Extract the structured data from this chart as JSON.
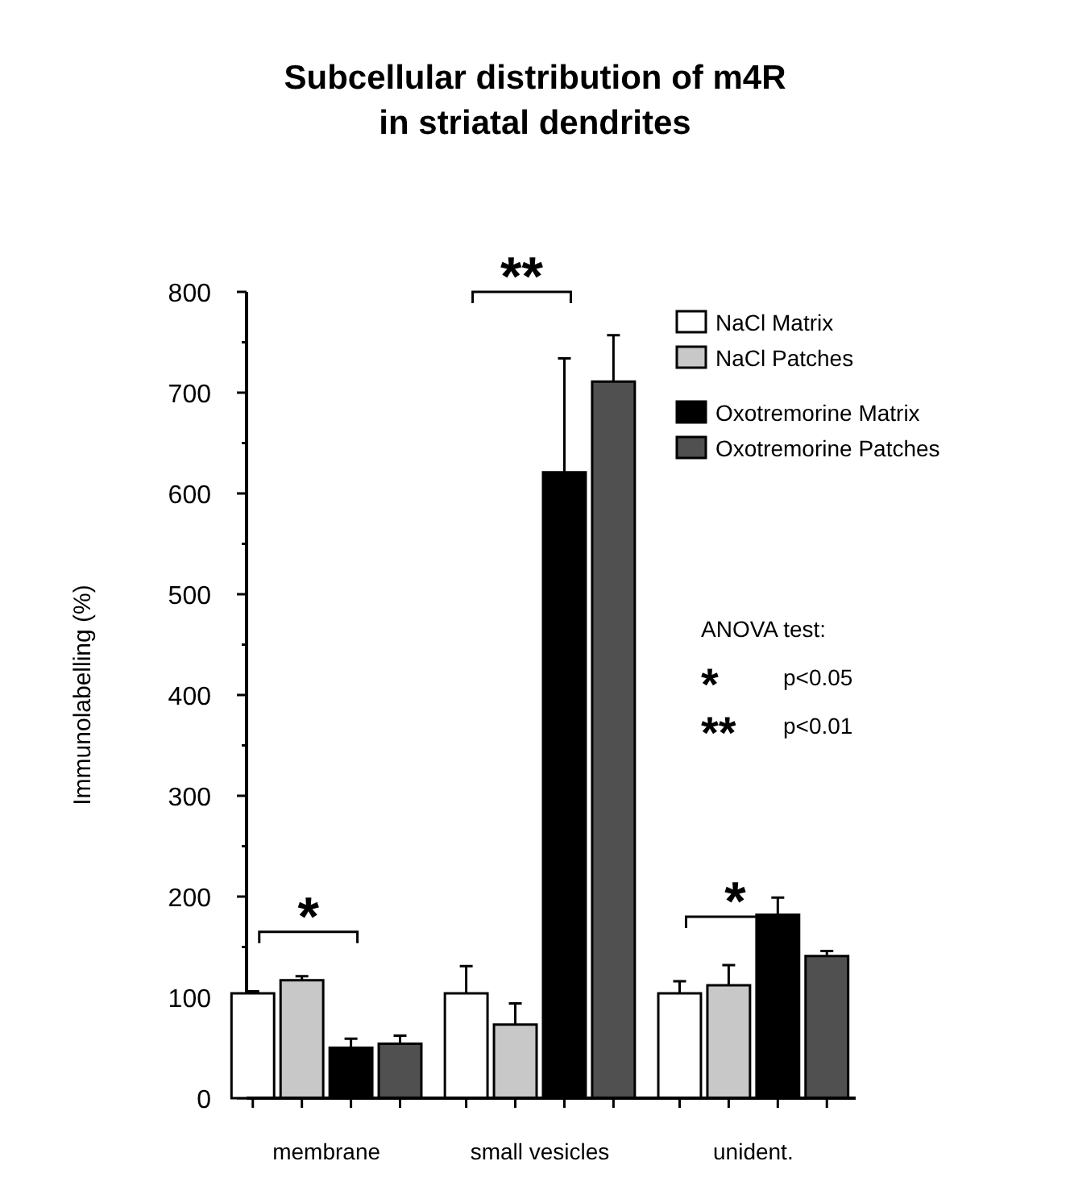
{
  "chart_data": {
    "type": "bar",
    "title": "Subcellular distribution of m4R\nin striatal dendrites",
    "ylabel": "Immunolabelling (%)",
    "categories": [
      "membrane",
      "small vesicles",
      "unident."
    ],
    "series": [
      {
        "name": "NaCl Matrix",
        "color": "#ffffff",
        "values": [
          104,
          104,
          104
        ],
        "errors": [
          2,
          27,
          12
        ]
      },
      {
        "name": "NaCl Patches",
        "color": "#c8c8c8",
        "values": [
          117,
          73,
          112
        ],
        "errors": [
          4,
          21,
          20
        ]
      },
      {
        "name": "Oxotremorine Matrix",
        "color": "#000000",
        "values": [
          50,
          621,
          182
        ],
        "errors": [
          9,
          113,
          17
        ]
      },
      {
        "name": "Oxotremorine Patches",
        "color": "#505050",
        "values": [
          54,
          711,
          141
        ],
        "errors": [
          8,
          46,
          5
        ]
      }
    ],
    "ylim": [
      0,
      800
    ],
    "yticks": [
      0,
      {
        "value": 50,
        "label": null
      },
      100,
      {
        "value": 150,
        "label": null
      },
      200,
      {
        "value": 250,
        "label": null
      },
      300,
      {
        "value": 350,
        "label": null
      },
      400,
      {
        "value": 450,
        "label": null
      },
      500,
      {
        "value": 550,
        "label": null
      },
      600,
      {
        "value": 650,
        "label": null
      },
      700,
      {
        "value": 750,
        "label": null
      },
      800
    ],
    "grid": false,
    "legend": "top right",
    "annotations": [
      "*",
      "**",
      "*",
      "ANOVA test:",
      "*  p<0.05",
      "**  p<0.01"
    ]
  }
}
